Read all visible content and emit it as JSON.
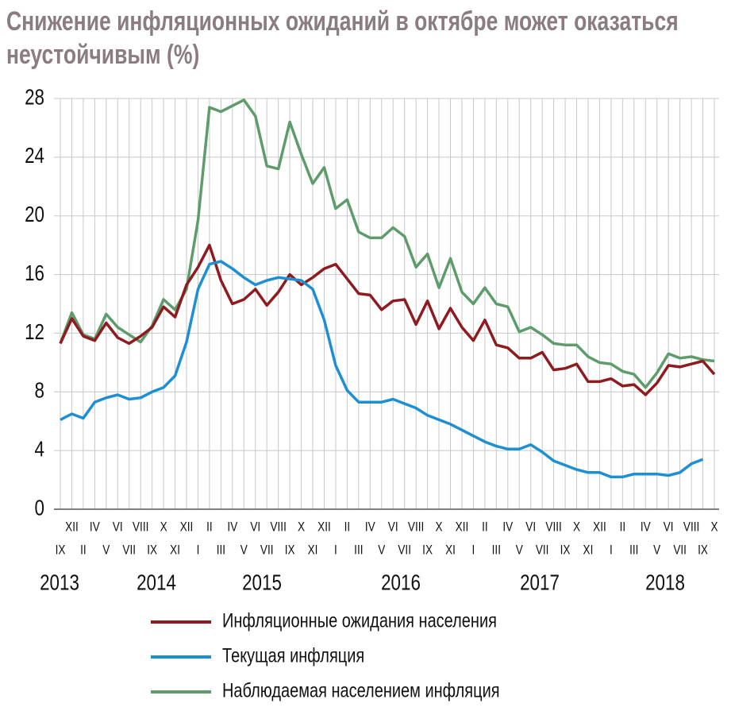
{
  "chart_data": {
    "type": "line",
    "title": "Снижение инфляционных ожиданий в октябре может оказаться неустойчивым (%)",
    "categories": [
      "IX",
      "XII",
      "II",
      "IV",
      "V",
      "VI",
      "VII",
      "VIII",
      "IX",
      "X",
      "XI",
      "XII",
      "I",
      "II",
      "III",
      "IV",
      "V",
      "VI",
      "VII",
      "VIII",
      "IX",
      "X",
      "XI",
      "XII",
      "I",
      "II",
      "III",
      "IV",
      "V",
      "VI",
      "VII",
      "VIII",
      "IX",
      "X",
      "XI",
      "XII",
      "I",
      "II",
      "III",
      "IV",
      "V",
      "VI",
      "VII",
      "VIII",
      "IX",
      "X",
      "XI",
      "XII",
      "I",
      "II",
      "III",
      "IV",
      "V",
      "VI",
      "VII",
      "VIII",
      "IX",
      "X"
    ],
    "years": [
      "2013",
      "2014",
      "2015",
      "2016",
      "2017",
      "2018"
    ],
    "series": [
      {
        "name": "Инфляционные ожидания населения",
        "color": "#8e1b1f",
        "values": [
          11.3,
          13.0,
          11.8,
          11.5,
          12.7,
          11.7,
          11.3,
          11.8,
          12.4,
          13.8,
          13.1,
          15.3,
          16.5,
          18.0,
          15.6,
          14.0,
          14.3,
          15.0,
          13.9,
          14.8,
          16.0,
          15.3,
          15.8,
          16.4,
          16.7,
          15.7,
          14.7,
          14.6,
          13.6,
          14.2,
          14.3,
          12.6,
          14.2,
          12.3,
          13.7,
          12.4,
          11.5,
          12.9,
          11.2,
          11.0,
          10.3,
          10.3,
          10.7,
          9.5,
          9.6,
          9.9,
          8.7,
          8.7,
          8.9,
          8.4,
          8.5,
          7.8,
          8.6,
          9.8,
          9.7,
          9.9,
          10.1,
          9.2
        ]
      },
      {
        "name": "Текущая инфляция",
        "color": "#1e8fd2",
        "values": [
          6.1,
          6.5,
          6.2,
          7.3,
          7.6,
          7.8,
          7.5,
          7.6,
          8.0,
          8.3,
          9.1,
          11.4,
          15.0,
          16.7,
          16.9,
          16.4,
          15.8,
          15.3,
          15.6,
          15.8,
          15.7,
          15.6,
          15.0,
          12.9,
          9.8,
          8.1,
          7.3,
          7.3,
          7.3,
          7.5,
          7.2,
          6.9,
          6.4,
          6.1,
          5.8,
          5.4,
          5.0,
          4.6,
          4.3,
          4.1,
          4.1,
          4.4,
          3.9,
          3.3,
          3.0,
          2.7,
          2.5,
          2.5,
          2.2,
          2.2,
          2.4,
          2.4,
          2.4,
          2.3,
          2.5,
          3.1,
          3.4,
          null
        ]
      },
      {
        "name": "Наблюдаемая населением инфляция",
        "color": "#5e9c6c",
        "values": [
          11.3,
          13.4,
          11.9,
          11.6,
          13.3,
          12.4,
          11.9,
          11.4,
          12.5,
          14.3,
          13.6,
          15.0,
          19.7,
          27.4,
          27.1,
          27.5,
          27.9,
          26.8,
          23.4,
          23.2,
          26.4,
          24.2,
          22.2,
          23.3,
          20.5,
          21.1,
          18.9,
          18.5,
          18.5,
          19.2,
          18.6,
          16.5,
          17.4,
          15.1,
          17.1,
          14.8,
          14.0,
          15.1,
          14.0,
          13.8,
          12.1,
          12.4,
          11.9,
          11.3,
          11.2,
          11.2,
          10.4,
          10.0,
          9.9,
          9.4,
          9.2,
          8.3,
          9.3,
          10.6,
          10.3,
          10.4,
          10.2,
          10.1
        ]
      }
    ],
    "ylim": [
      0,
      28
    ],
    "yticks": [
      0,
      4,
      8,
      12,
      16,
      20,
      24,
      28
    ],
    "grid": true
  }
}
